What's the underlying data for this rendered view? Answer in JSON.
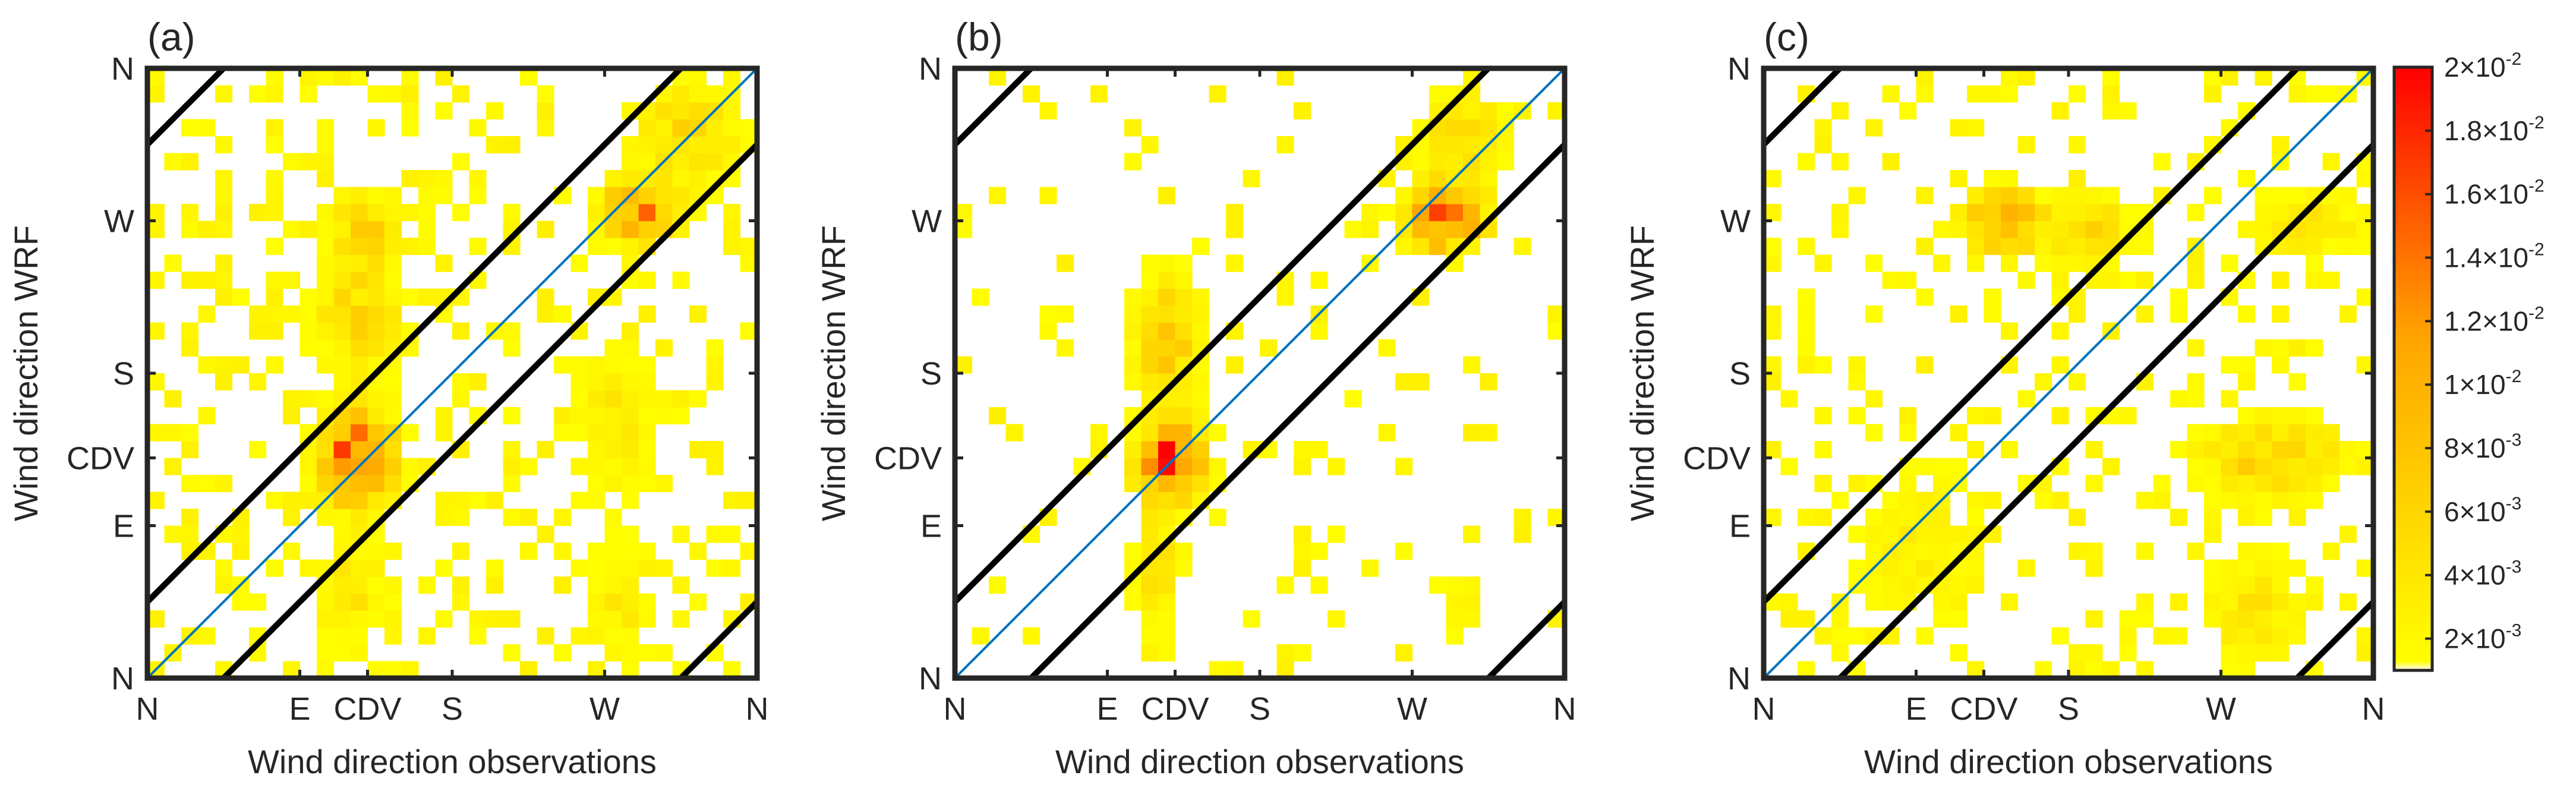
{
  "figure": {
    "description_note": "2D histograms of WRF vs observed wind direction at three sites",
    "xlabel": "Wind direction observations",
    "ylabel": "Wind direction WRF"
  },
  "chart_data": [
    {
      "type": "heatmap",
      "panel": "(a)",
      "xlabel": "Wind direction observations",
      "ylabel": "Wind direction WRF",
      "x_range_deg": [
        0,
        360
      ],
      "y_range_deg": [
        0,
        360
      ],
      "x_ticks": [
        {
          "deg": 0,
          "label": "N"
        },
        {
          "deg": 90,
          "label": "E"
        },
        {
          "deg": 130,
          "label": "CDV"
        },
        {
          "deg": 180,
          "label": "S"
        },
        {
          "deg": 270,
          "label": "W"
        },
        {
          "deg": 360,
          "label": "N"
        }
      ],
      "y_ticks": [
        {
          "deg": 0,
          "label": "N"
        },
        {
          "deg": 90,
          "label": "E"
        },
        {
          "deg": 130,
          "label": "CDV"
        },
        {
          "deg": 180,
          "label": "S"
        },
        {
          "deg": 270,
          "label": "W"
        },
        {
          "deg": 360,
          "label": "N"
        }
      ],
      "bin_width_deg": 10,
      "reference_lines": "1:1 diagonal (blue) with ±45° bounds (black)",
      "clusters": [
        {
          "x": 125,
          "y": 130,
          "sx": 14,
          "sy": 18,
          "peak": 0.016
        },
        {
          "x": 125,
          "y": 210,
          "sx": 16,
          "sy": 22,
          "peak": 0.006
        },
        {
          "x": 128,
          "y": 265,
          "sx": 12,
          "sy": 14,
          "peak": 0.007
        },
        {
          "x": 118,
          "y": 50,
          "sx": 14,
          "sy": 25,
          "peak": 0.004
        },
        {
          "x": 290,
          "y": 275,
          "sx": 14,
          "sy": 12,
          "peak": 0.012
        },
        {
          "x": 320,
          "y": 320,
          "sx": 22,
          "sy": 22,
          "peak": 0.005
        },
        {
          "x": 275,
          "y": 150,
          "sx": 18,
          "sy": 30,
          "peak": 0.0035
        },
        {
          "x": 280,
          "y": 45,
          "sx": 12,
          "sy": 25,
          "peak": 0.003
        }
      ],
      "noise_density": 0.3,
      "seed": 7
    },
    {
      "type": "heatmap",
      "panel": "(b)",
      "xlabel": "Wind direction observations",
      "ylabel": "Wind direction WRF",
      "x_range_deg": [
        0,
        360
      ],
      "y_range_deg": [
        0,
        360
      ],
      "x_ticks": [
        {
          "deg": 0,
          "label": "N"
        },
        {
          "deg": 90,
          "label": "E"
        },
        {
          "deg": 130,
          "label": "CDV"
        },
        {
          "deg": 180,
          "label": "S"
        },
        {
          "deg": 270,
          "label": "W"
        },
        {
          "deg": 360,
          "label": "N"
        }
      ],
      "y_ticks": [
        {
          "deg": 0,
          "label": "N"
        },
        {
          "deg": 90,
          "label": "E"
        },
        {
          "deg": 130,
          "label": "CDV"
        },
        {
          "deg": 180,
          "label": "S"
        },
        {
          "deg": 270,
          "label": "W"
        },
        {
          "deg": 360,
          "label": "N"
        }
      ],
      "bin_width_deg": 10,
      "reference_lines": "1:1 diagonal (blue) with ±45° bounds (black)",
      "clusters": [
        {
          "x": 128,
          "y": 128,
          "sx": 12,
          "sy": 14,
          "peak": 0.02
        },
        {
          "x": 125,
          "y": 200,
          "sx": 14,
          "sy": 26,
          "peak": 0.0065
        },
        {
          "x": 120,
          "y": 60,
          "sx": 10,
          "sy": 30,
          "peak": 0.004
        },
        {
          "x": 290,
          "y": 272,
          "sx": 14,
          "sy": 12,
          "peak": 0.017
        },
        {
          "x": 300,
          "y": 320,
          "sx": 16,
          "sy": 18,
          "peak": 0.005
        },
        {
          "x": 300,
          "y": 40,
          "sx": 8,
          "sy": 20,
          "peak": 0.002
        }
      ],
      "noise_density": 0.08,
      "seed": 11
    },
    {
      "type": "heatmap",
      "panel": "(c)",
      "xlabel": "Wind direction observations",
      "ylabel": "Wind direction WRF",
      "x_range_deg": [
        0,
        360
      ],
      "y_range_deg": [
        0,
        360
      ],
      "x_ticks": [
        {
          "deg": 0,
          "label": "N"
        },
        {
          "deg": 90,
          "label": "E"
        },
        {
          "deg": 130,
          "label": "CDV"
        },
        {
          "deg": 180,
          "label": "S"
        },
        {
          "deg": 270,
          "label": "W"
        },
        {
          "deg": 360,
          "label": "N"
        }
      ],
      "y_ticks": [
        {
          "deg": 0,
          "label": "N"
        },
        {
          "deg": 90,
          "label": "E"
        },
        {
          "deg": 130,
          "label": "CDV"
        },
        {
          "deg": 180,
          "label": "S"
        },
        {
          "deg": 270,
          "label": "W"
        },
        {
          "deg": 360,
          "label": "N"
        }
      ],
      "bin_width_deg": 10,
      "reference_lines": "1:1 diagonal (blue) with ±45° bounds (black)",
      "clusters": [
        {
          "x": 140,
          "y": 270,
          "sx": 14,
          "sy": 12,
          "peak": 0.0115
        },
        {
          "x": 190,
          "y": 265,
          "sx": 22,
          "sy": 14,
          "peak": 0.005
        },
        {
          "x": 300,
          "y": 130,
          "sx": 30,
          "sy": 16,
          "peak": 0.006
        },
        {
          "x": 320,
          "y": 270,
          "sx": 25,
          "sy": 14,
          "peak": 0.004
        },
        {
          "x": 290,
          "y": 40,
          "sx": 20,
          "sy": 25,
          "peak": 0.0035
        },
        {
          "x": 90,
          "y": 80,
          "sx": 30,
          "sy": 35,
          "peak": 0.0025
        }
      ],
      "noise_density": 0.22,
      "seed": 23
    }
  ],
  "colorbar": {
    "min": 0.001,
    "max": 0.02,
    "colors": [
      "#ffffff",
      "#ffff00",
      "#ffa500",
      "#ff0000"
    ],
    "ticks": [
      {
        "value": 0.002,
        "mantissa": "2",
        "exponent": "-3"
      },
      {
        "value": 0.004,
        "mantissa": "4",
        "exponent": "-3"
      },
      {
        "value": 0.006,
        "mantissa": "6",
        "exponent": "-3"
      },
      {
        "value": 0.008,
        "mantissa": "8",
        "exponent": "-3"
      },
      {
        "value": 0.01,
        "mantissa": "1",
        "exponent": "-2"
      },
      {
        "value": 0.012,
        "mantissa": "1.2",
        "exponent": "-2"
      },
      {
        "value": 0.014,
        "mantissa": "1.4",
        "exponent": "-2"
      },
      {
        "value": 0.016,
        "mantissa": "1.6",
        "exponent": "-2"
      },
      {
        "value": 0.018,
        "mantissa": "1.8",
        "exponent": "-2"
      },
      {
        "value": 0.02,
        "mantissa": "2",
        "exponent": "-2"
      }
    ]
  },
  "colors": {
    "diagonal": "#0072BD",
    "bounds": "#000000",
    "axes": "#262626"
  }
}
